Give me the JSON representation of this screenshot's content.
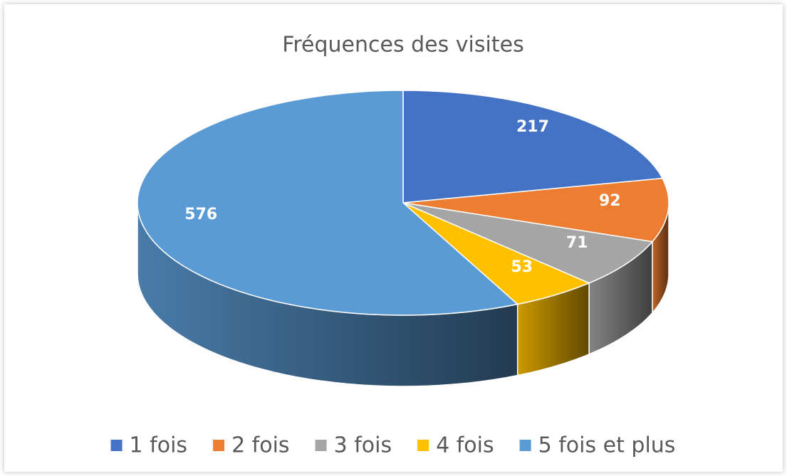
{
  "chart_data": {
    "type": "pie",
    "title": "Fréquences des visites",
    "categories": [
      "1 fois",
      "2 fois",
      "3 fois",
      "4 fois",
      "5 fois et plus"
    ],
    "values": [
      217,
      92,
      71,
      53,
      576
    ],
    "colors": [
      "#4472c4",
      "#ed7d31",
      "#a5a5a5",
      "#ffc000",
      "#5b9bd5"
    ],
    "legend": "bottom"
  }
}
